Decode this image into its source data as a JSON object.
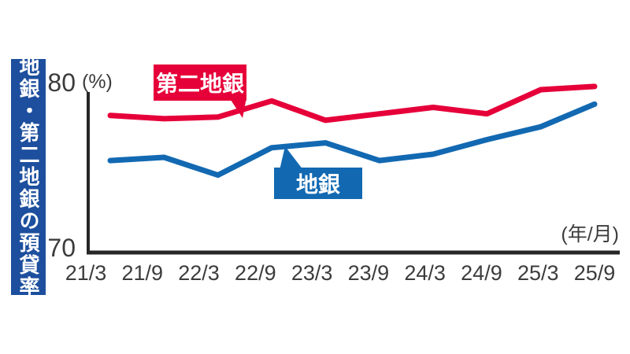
{
  "banner_title": "地銀・第二地銀の預貸率",
  "axis": {
    "y_top_label": "80",
    "y_bottom_label": "70",
    "y_unit": "(%)",
    "x_unit": "(年/月)"
  },
  "callouts": {
    "series_red": "第二地銀",
    "series_blue": "地銀"
  },
  "colors": {
    "red": "#e60039",
    "blue": "#1269b2",
    "sidebar_blue": "#1d4f9e",
    "axis": "#262626",
    "text": "#3c3c3c"
  },
  "chart_data": {
    "type": "line",
    "title": "地銀・第二地銀の預貸率",
    "categories": [
      "21/3",
      "21/9",
      "22/3",
      "22/9",
      "23/3",
      "23/9",
      "24/3",
      "24/9",
      "25/3",
      "25/9"
    ],
    "series": [
      {
        "name": "第二地銀",
        "color": "#e60039",
        "values": [
          78.5,
          78.3,
          78.4,
          79.4,
          78.2,
          78.6,
          79.0,
          78.6,
          80.1,
          80.3
        ]
      },
      {
        "name": "地銀",
        "color": "#1269b2",
        "values": [
          75.7,
          75.9,
          74.8,
          76.5,
          76.8,
          75.7,
          76.1,
          77.0,
          77.8,
          79.2
        ]
      }
    ],
    "xlabel": "(年/月)",
    "ylabel": "(%)",
    "ylim": [
      70,
      80
    ],
    "grid": false,
    "legend": "inline-callouts"
  }
}
